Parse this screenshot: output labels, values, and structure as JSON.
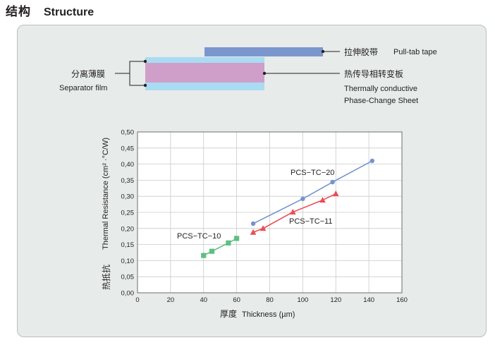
{
  "header": {
    "title_cn": "结构",
    "title_en": "Structure"
  },
  "structure": {
    "pulltab_cn": "拉伸胶带",
    "pulltab_en": "Pull-tab tape",
    "separator_cn": "分离薄膜",
    "separator_en": "Separator film",
    "sheet_cn": "热传导相转变板",
    "sheet_en_line1": "Thermally conductive",
    "sheet_en_line2": "Phase-Change Sheet",
    "colors": {
      "pulltab": "#7b96cc",
      "separator": "#a9dcf2",
      "sheet": "#cf9fca"
    }
  },
  "chart_data": {
    "type": "scatter",
    "title": "",
    "xlabel_cn": "厚度",
    "xlabel_en": "Thickness (µm)",
    "ylabel_cn": "热抵抗",
    "ylabel_en": "Thermal Resistance (cm² ·°C/W)",
    "xlim": [
      0,
      160
    ],
    "ylim": [
      0,
      0.5
    ],
    "x_ticks": [
      "0",
      "20",
      "40",
      "60",
      "80",
      "100",
      "120",
      "140",
      "160"
    ],
    "y_ticks": [
      "0,00",
      "0,05",
      "0,10",
      "0,15",
      "0,20",
      "0,25",
      "0,30",
      "0,35",
      "0,40",
      "0,45",
      "0,50"
    ],
    "grid": true,
    "series": [
      {
        "name": "PCS−TC−20",
        "color": "#7493cf",
        "marker": "circle",
        "x": [
          70,
          100,
          118,
          142
        ],
        "y": [
          0.215,
          0.292,
          0.344,
          0.41
        ]
      },
      {
        "name": "PCS−TC−11",
        "color": "#ea4e55",
        "marker": "triangle",
        "x": [
          70,
          76,
          94,
          112,
          120
        ],
        "y": [
          0.188,
          0.2,
          0.251,
          0.288,
          0.308
        ]
      },
      {
        "name": "PCS−TC−10",
        "color": "#5cbf82",
        "marker": "square",
        "x": [
          40,
          45,
          55,
          60
        ],
        "y": [
          0.116,
          0.129,
          0.155,
          0.169
        ]
      }
    ]
  }
}
